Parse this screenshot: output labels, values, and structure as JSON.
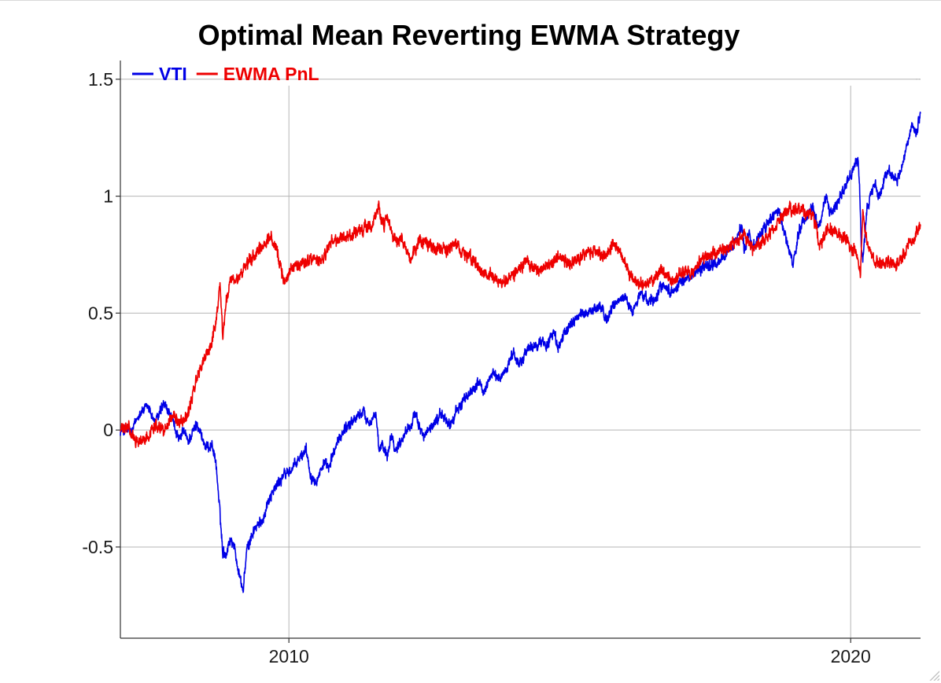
{
  "chart_data": {
    "type": "line",
    "title": "Optimal Mean Reverting EWMA Strategy",
    "xlabel": "",
    "ylabel": "",
    "x_range": [
      "2007-01-01",
      "2021-03-31"
    ],
    "ylim": [
      -0.89,
      1.58
    ],
    "x_ticks": [
      {
        "date": "2010-01-01",
        "label": "2010"
      },
      {
        "date": "2020-01-01",
        "label": "2020"
      }
    ],
    "y_ticks": [
      {
        "value": 1.5,
        "label": "1.5"
      },
      {
        "value": 1,
        "label": "1"
      },
      {
        "value": 0.5,
        "label": "0.5"
      },
      {
        "value": 0,
        "label": "0"
      },
      {
        "value": -0.5,
        "label": "-0.5"
      }
    ],
    "grid": true,
    "legend": {
      "position": "top-left",
      "orientation": "horizontal"
    },
    "series": [
      {
        "name": "VTI",
        "color": "#0000e6",
        "noise": 0.014,
        "points": [
          [
            "2007-01-01",
            0.0
          ],
          [
            "2007-02-26",
            0.0
          ],
          [
            "2007-03-15",
            -0.01
          ],
          [
            "2007-05-01",
            0.07
          ],
          [
            "2007-07-01",
            0.1
          ],
          [
            "2007-08-15",
            0.03
          ],
          [
            "2007-10-10",
            0.11
          ],
          [
            "2007-12-01",
            0.05
          ],
          [
            "2008-01-20",
            -0.05
          ],
          [
            "2008-02-15",
            0.0
          ],
          [
            "2008-03-15",
            -0.05
          ],
          [
            "2008-05-15",
            0.03
          ],
          [
            "2008-07-10",
            -0.08
          ],
          [
            "2008-08-20",
            -0.06
          ],
          [
            "2008-09-15",
            -0.15
          ],
          [
            "2008-10-10",
            -0.36
          ],
          [
            "2008-10-28",
            -0.52
          ],
          [
            "2008-11-20",
            -0.53
          ],
          [
            "2008-12-10",
            -0.47
          ],
          [
            "2009-01-06",
            -0.48
          ],
          [
            "2009-02-01",
            -0.58
          ],
          [
            "2009-03-09",
            -0.69
          ],
          [
            "2009-04-01",
            -0.52
          ],
          [
            "2009-05-15",
            -0.43
          ],
          [
            "2009-07-10",
            -0.39
          ],
          [
            "2009-09-01",
            -0.28
          ],
          [
            "2009-12-01",
            -0.19
          ],
          [
            "2010-01-20",
            -0.17
          ],
          [
            "2010-04-23",
            -0.08
          ],
          [
            "2010-05-25",
            -0.2
          ],
          [
            "2010-07-02",
            -0.21
          ],
          [
            "2010-08-15",
            -0.14
          ],
          [
            "2010-09-15",
            -0.17
          ],
          [
            "2010-11-01",
            -0.07
          ],
          [
            "2011-01-01",
            0.01
          ],
          [
            "2011-04-29",
            0.08
          ],
          [
            "2011-06-01",
            0.03
          ],
          [
            "2011-07-20",
            0.07
          ],
          [
            "2011-08-08",
            -0.09
          ],
          [
            "2011-09-01",
            -0.06
          ],
          [
            "2011-10-03",
            -0.11
          ],
          [
            "2011-10-28",
            -0.01
          ],
          [
            "2011-11-25",
            -0.09
          ],
          [
            "2012-01-01",
            -0.04
          ],
          [
            "2012-03-30",
            0.06
          ],
          [
            "2012-06-01",
            -0.03
          ],
          [
            "2012-09-15",
            0.07
          ],
          [
            "2012-11-15",
            0.02
          ],
          [
            "2013-01-02",
            0.09
          ],
          [
            "2013-05-20",
            0.21
          ],
          [
            "2013-06-24",
            0.15
          ],
          [
            "2013-08-01",
            0.24
          ],
          [
            "2013-10-08",
            0.22
          ],
          [
            "2013-12-31",
            0.33
          ],
          [
            "2014-02-03",
            0.28
          ],
          [
            "2014-04-01",
            0.34
          ],
          [
            "2014-06-30",
            0.38
          ],
          [
            "2014-08-01",
            0.36
          ],
          [
            "2014-09-19",
            0.42
          ],
          [
            "2014-10-15",
            0.35
          ],
          [
            "2014-12-29",
            0.45
          ],
          [
            "2015-03-01",
            0.49
          ],
          [
            "2015-05-20",
            0.51
          ],
          [
            "2015-07-20",
            0.53
          ],
          [
            "2015-08-24",
            0.47
          ],
          [
            "2015-11-03",
            0.55
          ],
          [
            "2016-01-01",
            0.57
          ],
          [
            "2016-02-11",
            0.5
          ],
          [
            "2016-03-31",
            0.58
          ],
          [
            "2016-06-27",
            0.55
          ],
          [
            "2016-08-15",
            0.62
          ],
          [
            "2016-11-04",
            0.59
          ],
          [
            "2016-12-15",
            0.63
          ],
          [
            "2017-03-01",
            0.66
          ],
          [
            "2017-06-01",
            0.7
          ],
          [
            "2017-09-01",
            0.72
          ],
          [
            "2017-12-01",
            0.79
          ],
          [
            "2018-01-26",
            0.87
          ],
          [
            "2018-02-08",
            0.77
          ],
          [
            "2018-03-13",
            0.84
          ],
          [
            "2018-04-02",
            0.78
          ],
          [
            "2018-06-15",
            0.86
          ],
          [
            "2018-09-20",
            0.95
          ],
          [
            "2018-10-29",
            0.84
          ],
          [
            "2018-12-24",
            0.7
          ],
          [
            "2019-02-01",
            0.86
          ],
          [
            "2019-04-30",
            0.96
          ],
          [
            "2019-06-03",
            0.86
          ],
          [
            "2019-07-26",
            1.0
          ],
          [
            "2019-08-15",
            0.93
          ],
          [
            "2019-10-02",
            0.97
          ],
          [
            "2020-02-19",
            1.16
          ],
          [
            "2020-03-02",
            0.98
          ],
          [
            "2020-03-12",
            0.75
          ],
          [
            "2020-03-23",
            0.73
          ],
          [
            "2020-04-15",
            0.95
          ],
          [
            "2020-06-08",
            1.06
          ],
          [
            "2020-06-26",
            0.99
          ],
          [
            "2020-09-02",
            1.12
          ],
          [
            "2020-10-30",
            1.06
          ],
          [
            "2020-12-31",
            1.21
          ],
          [
            "2021-02-12",
            1.3
          ],
          [
            "2021-03-04",
            1.26
          ],
          [
            "2021-03-31",
            1.36
          ]
        ]
      },
      {
        "name": "EWMA PnL",
        "color": "#ee0000",
        "noise": 0.016,
        "points": [
          [
            "2007-01-01",
            0.0
          ],
          [
            "2007-02-26",
            0.01
          ],
          [
            "2007-03-15",
            -0.03
          ],
          [
            "2007-05-15",
            -0.05
          ],
          [
            "2007-07-01",
            -0.03
          ],
          [
            "2007-08-15",
            0.03
          ],
          [
            "2007-10-10",
            0.0
          ],
          [
            "2007-12-01",
            0.06
          ],
          [
            "2008-01-20",
            0.04
          ],
          [
            "2008-03-15",
            0.06
          ],
          [
            "2008-05-01",
            0.2
          ],
          [
            "2008-06-15",
            0.28
          ],
          [
            "2008-08-15",
            0.37
          ],
          [
            "2008-09-15",
            0.47
          ],
          [
            "2008-10-10",
            0.63
          ],
          [
            "2008-10-28",
            0.4
          ],
          [
            "2008-11-20",
            0.55
          ],
          [
            "2008-12-15",
            0.64
          ],
          [
            "2009-01-15",
            0.63
          ],
          [
            "2009-03-09",
            0.68
          ],
          [
            "2009-05-15",
            0.74
          ],
          [
            "2009-07-01",
            0.77
          ],
          [
            "2009-09-01",
            0.83
          ],
          [
            "2009-10-15",
            0.76
          ],
          [
            "2009-12-01",
            0.64
          ],
          [
            "2010-02-01",
            0.7
          ],
          [
            "2010-05-25",
            0.73
          ],
          [
            "2010-08-01",
            0.72
          ],
          [
            "2010-10-01",
            0.8
          ],
          [
            "2011-01-01",
            0.82
          ],
          [
            "2011-05-01",
            0.86
          ],
          [
            "2011-07-01",
            0.88
          ],
          [
            "2011-08-08",
            0.96
          ],
          [
            "2011-09-01",
            0.87
          ],
          [
            "2011-10-01",
            0.9
          ],
          [
            "2011-11-25",
            0.8
          ],
          [
            "2012-01-01",
            0.81
          ],
          [
            "2012-03-01",
            0.73
          ],
          [
            "2012-05-01",
            0.81
          ],
          [
            "2012-08-01",
            0.78
          ],
          [
            "2012-11-01",
            0.77
          ],
          [
            "2013-01-02",
            0.79
          ],
          [
            "2013-04-01",
            0.73
          ],
          [
            "2013-06-24",
            0.67
          ],
          [
            "2013-08-15",
            0.66
          ],
          [
            "2013-10-15",
            0.62
          ],
          [
            "2014-01-15",
            0.68
          ],
          [
            "2014-04-01",
            0.73
          ],
          [
            "2014-06-01",
            0.68
          ],
          [
            "2014-08-01",
            0.69
          ],
          [
            "2014-10-15",
            0.74
          ],
          [
            "2014-12-29",
            0.71
          ],
          [
            "2015-03-15",
            0.74
          ],
          [
            "2015-06-01",
            0.77
          ],
          [
            "2015-08-24",
            0.74
          ],
          [
            "2015-10-15",
            0.81
          ],
          [
            "2015-12-01",
            0.75
          ],
          [
            "2016-02-11",
            0.65
          ],
          [
            "2016-04-01",
            0.62
          ],
          [
            "2016-06-27",
            0.64
          ],
          [
            "2016-08-15",
            0.69
          ],
          [
            "2016-11-04",
            0.63
          ],
          [
            "2017-01-01",
            0.68
          ],
          [
            "2017-03-01",
            0.66
          ],
          [
            "2017-05-01",
            0.73
          ],
          [
            "2017-08-01",
            0.76
          ],
          [
            "2017-11-01",
            0.78
          ],
          [
            "2018-02-08",
            0.83
          ],
          [
            "2018-04-01",
            0.77
          ],
          [
            "2018-07-01",
            0.82
          ],
          [
            "2018-09-01",
            0.87
          ],
          [
            "2018-11-01",
            0.93
          ],
          [
            "2019-02-01",
            0.95
          ],
          [
            "2019-05-01",
            0.91
          ],
          [
            "2019-06-15",
            0.8
          ],
          [
            "2019-08-15",
            0.86
          ],
          [
            "2019-10-15",
            0.84
          ],
          [
            "2019-12-15",
            0.8
          ],
          [
            "2020-02-01",
            0.77
          ],
          [
            "2020-03-05",
            0.68
          ],
          [
            "2020-03-20",
            0.95
          ],
          [
            "2020-04-01",
            0.86
          ],
          [
            "2020-05-01",
            0.78
          ],
          [
            "2020-06-08",
            0.72
          ],
          [
            "2020-07-15",
            0.7
          ],
          [
            "2020-09-01",
            0.73
          ],
          [
            "2020-10-15",
            0.7
          ],
          [
            "2020-12-01",
            0.73
          ],
          [
            "2021-01-15",
            0.8
          ],
          [
            "2021-02-15",
            0.82
          ],
          [
            "2021-03-10",
            0.86
          ],
          [
            "2021-03-31",
            0.87
          ]
        ]
      }
    ]
  }
}
